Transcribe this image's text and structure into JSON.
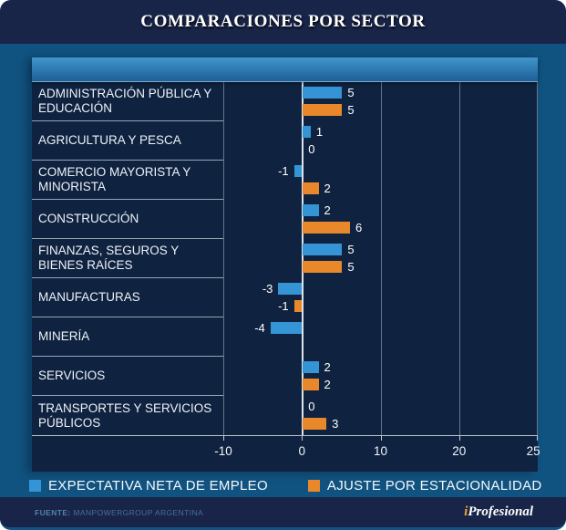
{
  "header": {
    "title": "COMPARACIONES POR SECTOR"
  },
  "chart_data": {
    "type": "bar",
    "orientation": "horizontal",
    "categories": [
      "ADMINISTRACIÓN PÚBLICA Y EDUCACIÓN",
      "AGRICULTURA Y PESCA",
      "COMERCIO MAYORISTA Y MINORISTA",
      "CONSTRUCCIÓN",
      "FINANZAS, SEGUROS Y BIENES RAÍCES",
      "MANUFACTURAS",
      "MINERÍA",
      "SERVICIOS",
      "TRANSPORTES Y SERVICIOS PÚBLICOS"
    ],
    "series": [
      {
        "name": "EXPECTATIVA NETA DE EMPLEO",
        "color": "#3594d6",
        "values": [
          5,
          1,
          -1,
          2,
          5,
          -3,
          -4,
          2,
          0
        ]
      },
      {
        "name": "AJUSTE POR ESTACIONALIDAD",
        "color": "#e8882a",
        "values": [
          5,
          0,
          2,
          6,
          5,
          -1,
          null,
          2,
          3
        ]
      }
    ],
    "xticks": [
      -10,
      0,
      10,
      20,
      25
    ],
    "xlim": [
      -10,
      25
    ],
    "zero_tick_index": 1,
    "grid": true,
    "legend_position": "bottom",
    "background": "#0f2341",
    "gridline_color": "#b0bac4",
    "zero_line_color": "#dde3e9"
  },
  "footer": {
    "source_label": "FUENTE:",
    "source_text": "MANPOWERGROUP ARGENTINA",
    "brand_prefix": "i",
    "brand_name": "Profesional"
  }
}
